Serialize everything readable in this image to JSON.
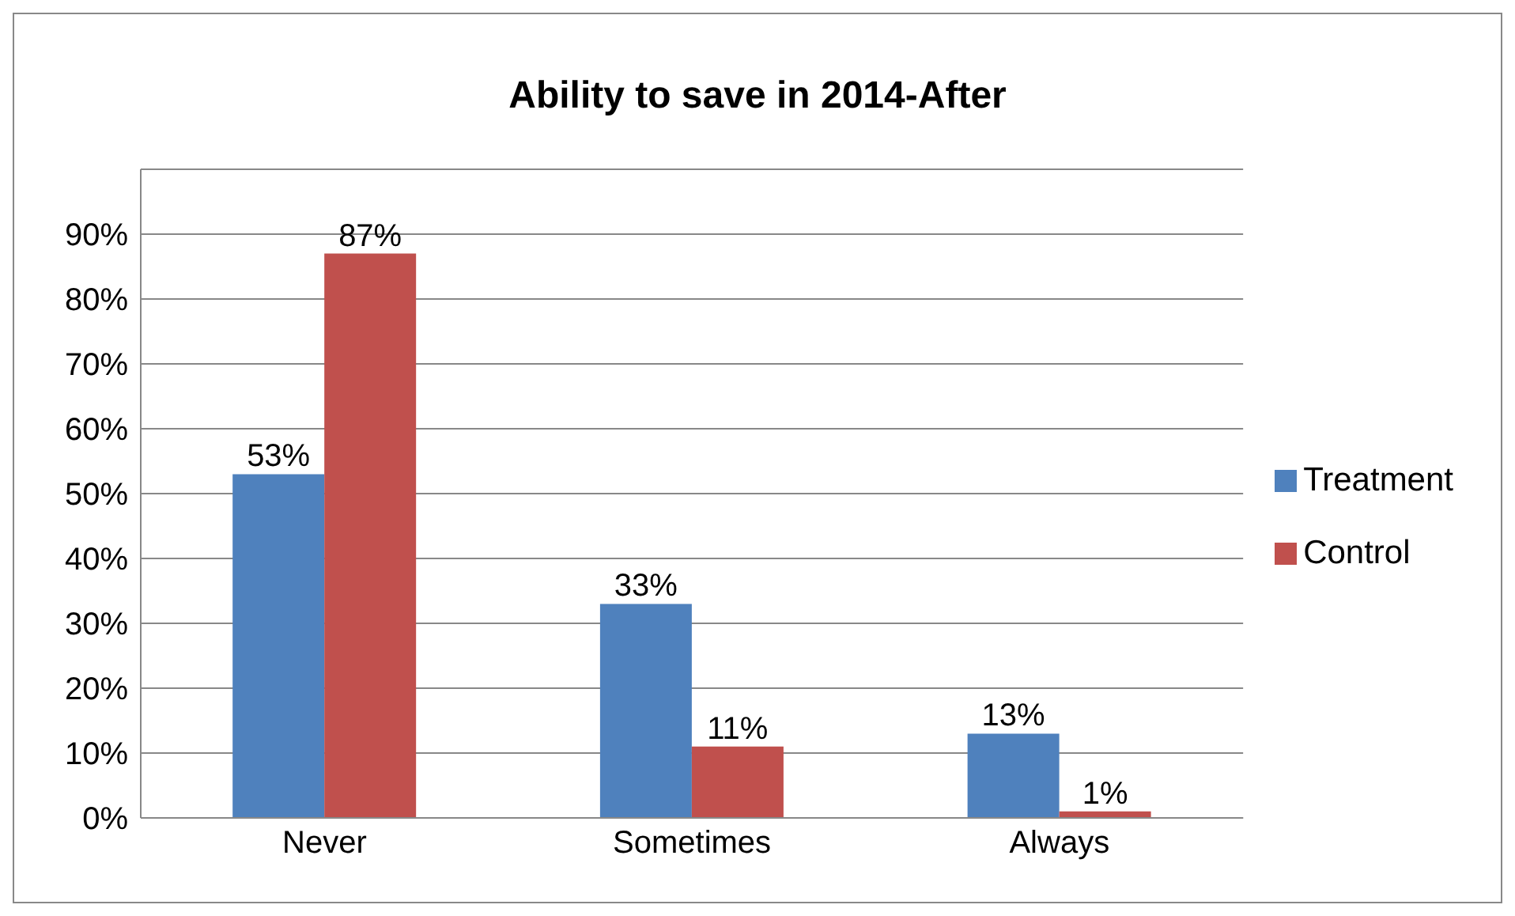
{
  "chart_data": {
    "type": "bar",
    "title": "Ability to save in 2014-After",
    "categories": [
      "Never",
      "Sometimes",
      "Always"
    ],
    "series": [
      {
        "name": "Treatment",
        "color": "#4f81bd",
        "values": [
          53,
          33,
          13
        ],
        "value_labels": [
          "53%",
          "33%",
          "13%"
        ]
      },
      {
        "name": "Control",
        "color": "#c0504d",
        "values": [
          87,
          11,
          1
        ],
        "value_labels": [
          "87%",
          "11%",
          "1%"
        ]
      }
    ],
    "ylim": [
      0,
      100
    ],
    "yticks": [
      {
        "value": 0,
        "label": "0%"
      },
      {
        "value": 10,
        "label": "10%"
      },
      {
        "value": 20,
        "label": "20%"
      },
      {
        "value": 30,
        "label": "30%"
      },
      {
        "value": 40,
        "label": "40%"
      },
      {
        "value": 50,
        "label": "50%"
      },
      {
        "value": 60,
        "label": "60%"
      },
      {
        "value": 70,
        "label": "70%"
      },
      {
        "value": 80,
        "label": "80%"
      },
      {
        "value": 90,
        "label": "90%"
      },
      {
        "value": 100,
        "label": null
      }
    ],
    "grid": "y",
    "legend": "right"
  }
}
